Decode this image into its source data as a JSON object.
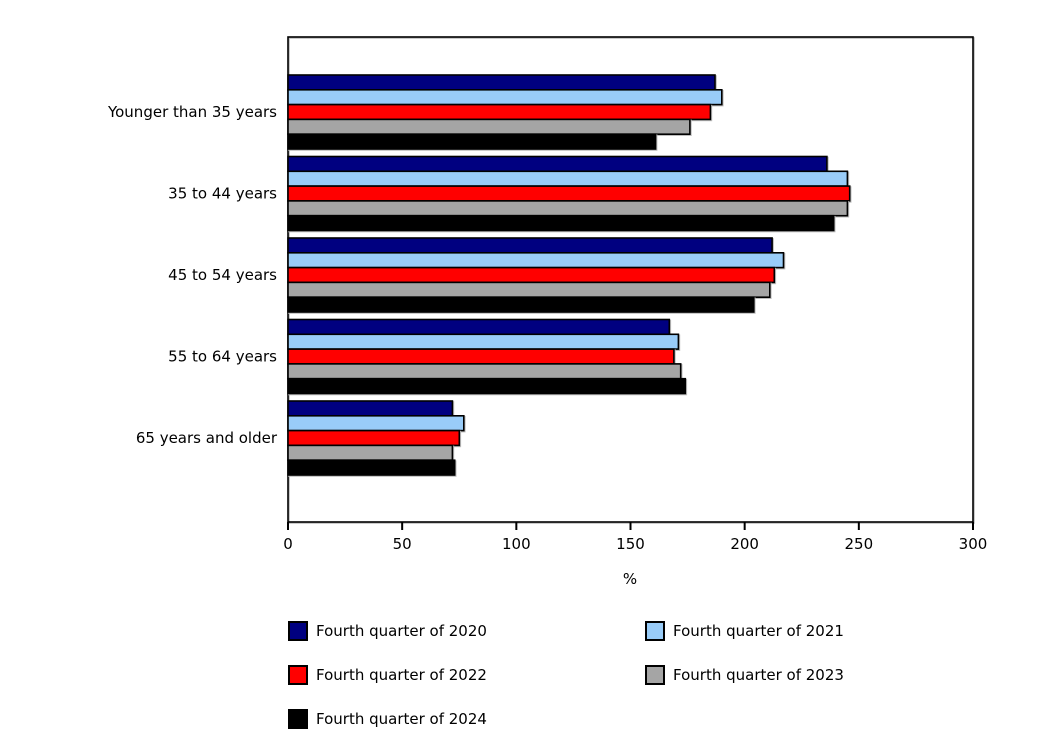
{
  "chart_data": {
    "type": "bar",
    "orientation": "horizontal",
    "title": "",
    "xlabel": "%",
    "ylabel": "",
    "xlim": [
      0,
      300
    ],
    "xticks": [
      0,
      50,
      100,
      150,
      200,
      250,
      300
    ],
    "grid": false,
    "legend_position": "bottom",
    "categories": [
      "Younger than 35 years",
      "35 to 44 years",
      "45 to 54 years",
      "55 to 64 years",
      "65 years and older"
    ],
    "series": [
      {
        "name": "Fourth quarter of 2020",
        "color": "#000080",
        "values": [
          187,
          236,
          212,
          167,
          72
        ]
      },
      {
        "name": "Fourth quarter of 2021",
        "color": "#99CCF8",
        "values": [
          190,
          245,
          217,
          171,
          77
        ]
      },
      {
        "name": "Fourth quarter of 2022",
        "color": "#FF0000",
        "values": [
          185,
          246,
          213,
          169,
          75
        ]
      },
      {
        "name": "Fourth quarter of 2023",
        "color": "#A5A5A5",
        "values": [
          176,
          245,
          211,
          172,
          72
        ]
      },
      {
        "name": "Fourth quarter of 2024",
        "color": "#000000",
        "values": [
          161,
          239,
          204,
          174,
          73
        ]
      }
    ],
    "colors": {
      "axis": "#000000",
      "text": "#000000",
      "bar_border": "#000000",
      "shadow": "#BDBDBD",
      "background": "#FFFFFF"
    }
  }
}
